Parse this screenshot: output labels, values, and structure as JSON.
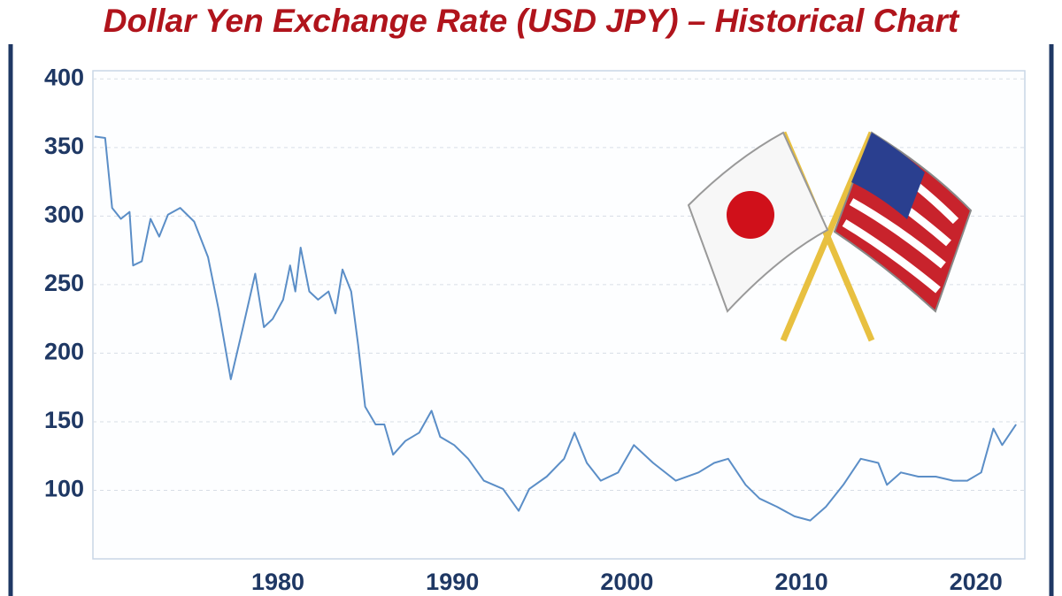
{
  "chart_data": {
    "type": "line",
    "title": "Dollar Yen Exchange Rate (USD JPY) – Historical Chart",
    "x": [
      1969.5,
      1970.1,
      1970.5,
      1971.0,
      1971.5,
      1971.7,
      1972.2,
      1972.7,
      1973.2,
      1973.7,
      1974.4,
      1975.2,
      1976.0,
      1976.6,
      1977.3,
      1978.0,
      1978.7,
      1979.2,
      1979.7,
      1980.3,
      1980.7,
      1981.0,
      1981.3,
      1981.8,
      1982.3,
      1982.9,
      1983.3,
      1983.7,
      1984.2,
      1984.6,
      1985.0,
      1985.6,
      1986.1,
      1986.6,
      1987.3,
      1988.1,
      1988.8,
      1989.3,
      1990.1,
      1990.9,
      1991.8,
      1992.9,
      1993.8,
      1994.4,
      1995.4,
      1996.4,
      1997.0,
      1997.7,
      1998.5,
      1999.5,
      2000.4,
      2001.5,
      2002.8,
      2004.1,
      2005.0,
      2005.8,
      2006.8,
      2007.6,
      2008.6,
      2009.6,
      2010.5,
      2011.4,
      2012.4,
      2013.4,
      2014.4,
      2014.9,
      2015.7,
      2016.7,
      2017.7,
      2018.7,
      2019.5,
      2020.3,
      2021.0,
      2021.5,
      2022.3
    ],
    "values": [
      358,
      357,
      306,
      298,
      303,
      264,
      267,
      298,
      285,
      301,
      306,
      296,
      270,
      232,
      181,
      219,
      258,
      219,
      225,
      239,
      264,
      245,
      277,
      245,
      239,
      245,
      229,
      261,
      245,
      206,
      161,
      148,
      148,
      126,
      136,
      142,
      158,
      139,
      133,
      123,
      107,
      101,
      85,
      101,
      110,
      123,
      142,
      120,
      107,
      113,
      133,
      120,
      107,
      113,
      120,
      123,
      104,
      94,
      88,
      81,
      78,
      88,
      104,
      123,
      120,
      104,
      113,
      110,
      110,
      107,
      107,
      113,
      145,
      133,
      148
    ],
    "color": "#5b8ec7",
    "xlim": [
      1969.4,
      2022.8
    ],
    "xticks": [
      1980,
      1990,
      2000,
      2010,
      2020
    ],
    "ylim": [
      50,
      406
    ],
    "yticks": [
      100,
      150,
      200,
      250,
      300,
      350,
      400
    ],
    "grid": true
  }
}
